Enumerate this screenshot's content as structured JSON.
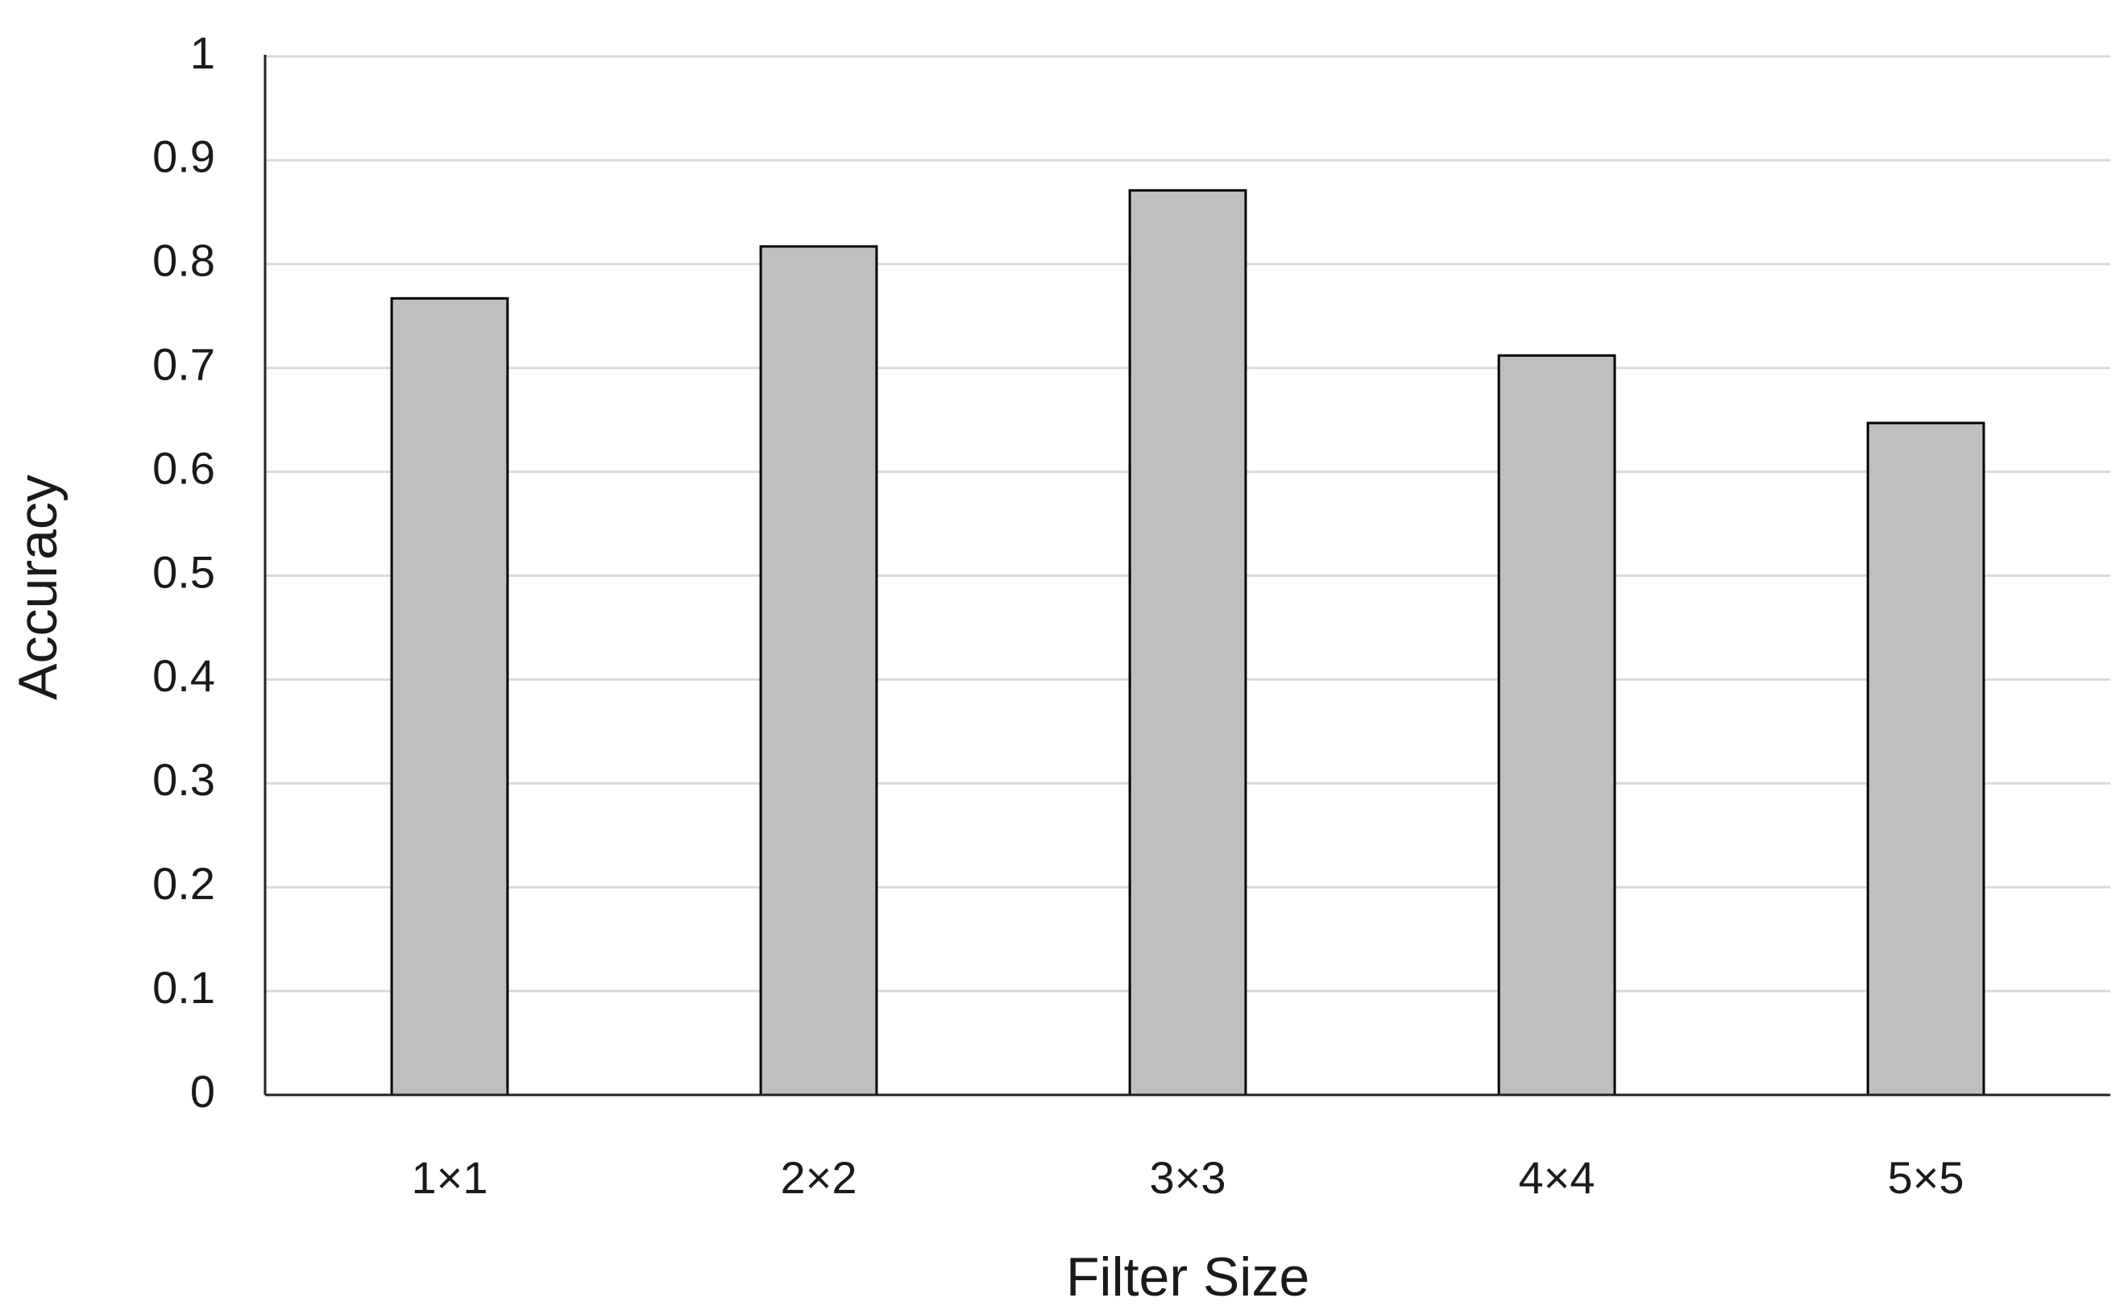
{
  "chart_data": {
    "type": "bar",
    "x_label": "Filter Size",
    "y_label": "Accuracy",
    "categories": [
      "1×1",
      "2×2",
      "3×3",
      "4×4",
      "5×5"
    ],
    "values": [
      0.767,
      0.817,
      0.871,
      0.712,
      0.647
    ],
    "color": "#bfbfbf",
    "ylim": [
      0,
      1
    ],
    "yticks": [
      0,
      0.1,
      0.2,
      0.3,
      0.4,
      0.5,
      0.6,
      0.7,
      0.8,
      0.9,
      1
    ],
    "grid": true
  }
}
